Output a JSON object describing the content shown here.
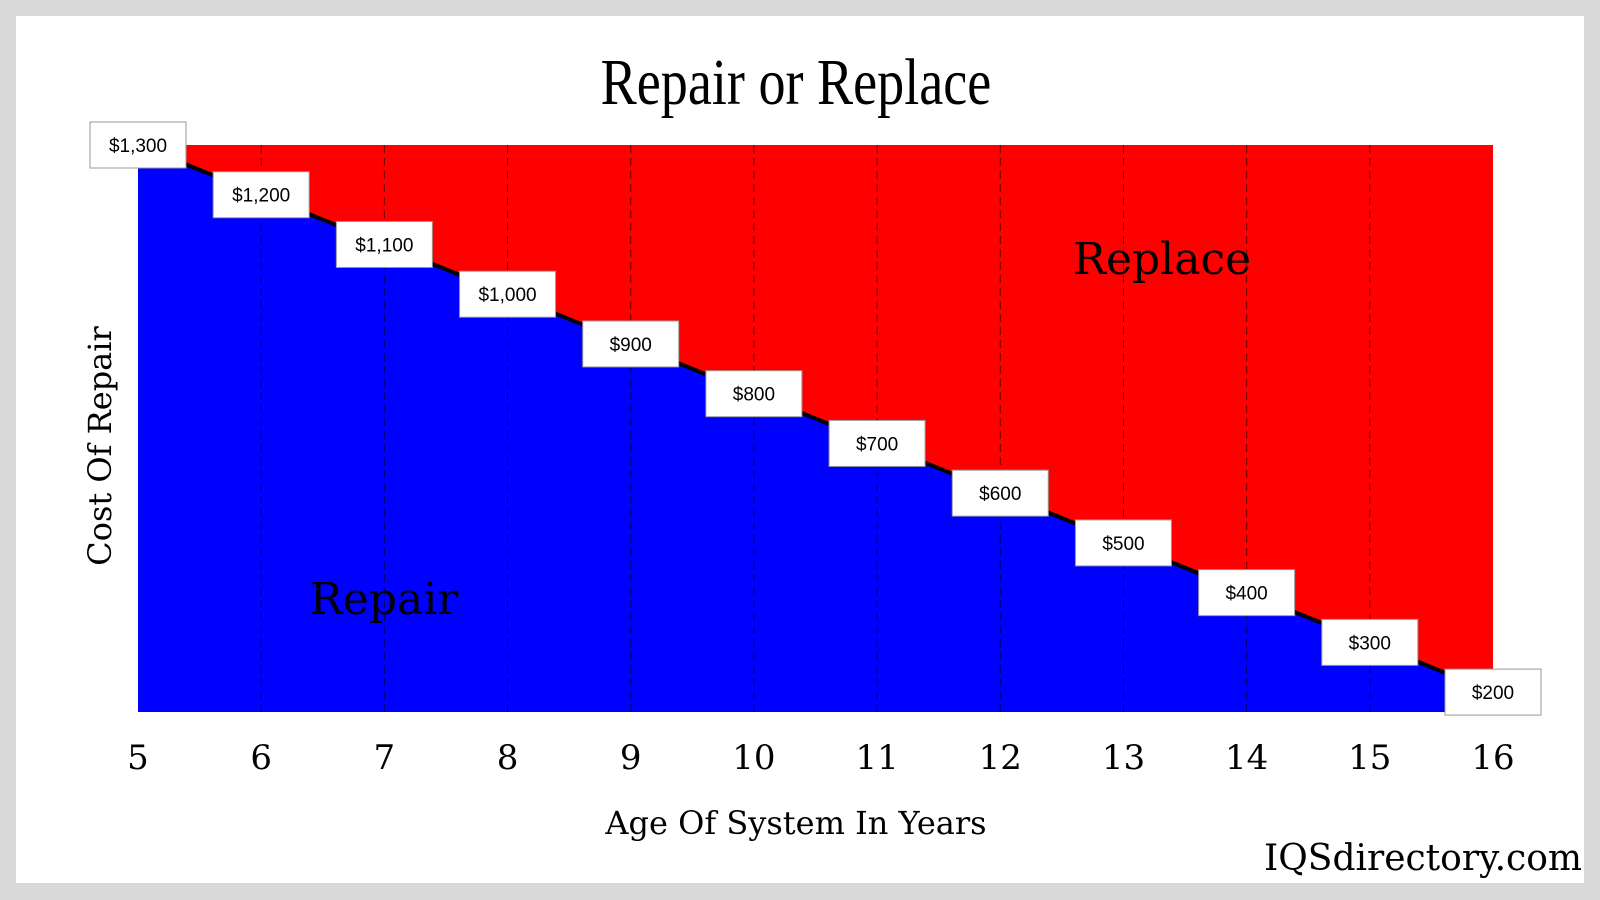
{
  "chart_data": {
    "type": "area",
    "title": "Repair or Replace",
    "xlabel": "Age Of System In Years",
    "ylabel": "Cost Of Repair",
    "x": [
      5,
      6,
      7,
      8,
      9,
      10,
      11,
      12,
      13,
      14,
      15,
      16
    ],
    "values": [
      1300,
      1200,
      1100,
      1000,
      900,
      800,
      700,
      600,
      500,
      400,
      300,
      200
    ],
    "data_labels": [
      "$1,300",
      "$1,200",
      "$1,100",
      "$1,000",
      "$900",
      "$800",
      "$700",
      "$600",
      "$500",
      "$400",
      "$300",
      "$200"
    ],
    "tick_labels": [
      "5",
      "6",
      "7",
      "8",
      "9",
      "10",
      "11",
      "12",
      "13",
      "14",
      "15",
      "16"
    ],
    "xlim": [
      5,
      16
    ],
    "ylim": [
      160,
      1300
    ],
    "grid": "vertical dashed",
    "regions": [
      {
        "label": "Repair",
        "color": "#0000ff",
        "position": "below line"
      },
      {
        "label": "Replace",
        "color": "#ff0000",
        "position": "above line"
      }
    ],
    "watermark": "IQSdirectory.com"
  }
}
